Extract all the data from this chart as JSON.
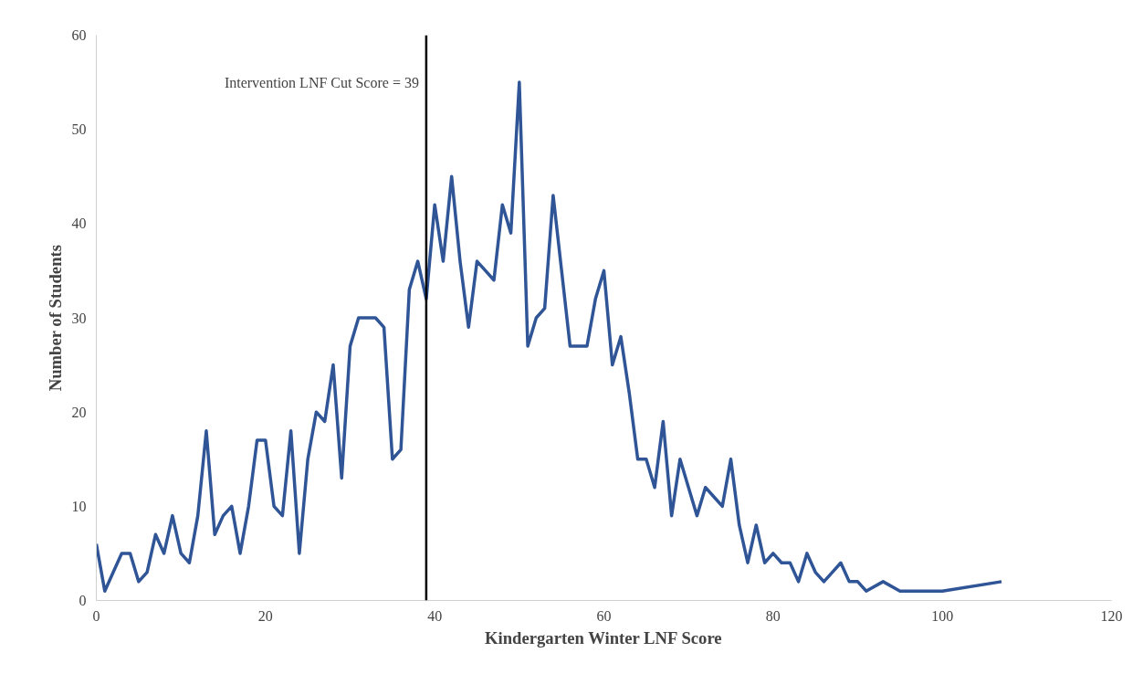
{
  "chart_data": {
    "type": "line",
    "xlabel": "Kindergarten Winter LNF Score",
    "ylabel": "Number of Students",
    "x": [
      0,
      1,
      2,
      3,
      4,
      5,
      6,
      7,
      8,
      9,
      10,
      11,
      12,
      13,
      14,
      15,
      16,
      17,
      18,
      19,
      20,
      21,
      22,
      23,
      24,
      25,
      26,
      27,
      28,
      29,
      30,
      31,
      32,
      33,
      34,
      35,
      36,
      37,
      38,
      39,
      40,
      41,
      42,
      43,
      44,
      45,
      46,
      47,
      48,
      49,
      50,
      51,
      52,
      53,
      54,
      55,
      56,
      57,
      58,
      59,
      60,
      61,
      62,
      63,
      64,
      65,
      66,
      67,
      68,
      69,
      70,
      71,
      72,
      73,
      74,
      75,
      76,
      77,
      78,
      79,
      80,
      81,
      82,
      83,
      84,
      85,
      86,
      87,
      88,
      89,
      90,
      91,
      93,
      95,
      100,
      107
    ],
    "series": [
      {
        "color": "#2f5597",
        "values": [
          6,
          1,
          3,
          5,
          5,
          2,
          3,
          7,
          5,
          9,
          5,
          4,
          9,
          18,
          7,
          9,
          10,
          5,
          10,
          17,
          17,
          10,
          9,
          18,
          5,
          15,
          20,
          19,
          25,
          13,
          27,
          30,
          30,
          30,
          29,
          15,
          16,
          33,
          36,
          32,
          42,
          36,
          45,
          36,
          29,
          36,
          35,
          34,
          42,
          39,
          55,
          27,
          30,
          31,
          43,
          35,
          27,
          27,
          27,
          32,
          35,
          25,
          28,
          22,
          15,
          15,
          12,
          19,
          9,
          15,
          12,
          9,
          12,
          11,
          10,
          15,
          8,
          4,
          8,
          4,
          5,
          4,
          4,
          2,
          5,
          3,
          2,
          3,
          4,
          2,
          2,
          1,
          2,
          1,
          1,
          2
        ]
      }
    ],
    "xlim": [
      0,
      120
    ],
    "xticks": [
      0,
      20,
      40,
      60,
      80,
      100,
      120
    ],
    "ylim": [
      0,
      60
    ],
    "yticks": [
      0,
      10,
      20,
      30,
      40,
      50,
      60
    ],
    "grid": false,
    "marker": "none",
    "line_style": "solid",
    "ref_lines": [
      {
        "axis": "x",
        "value": 39,
        "label": "Intervention LNF Cut Score = 39",
        "color": "#000000"
      }
    ]
  }
}
